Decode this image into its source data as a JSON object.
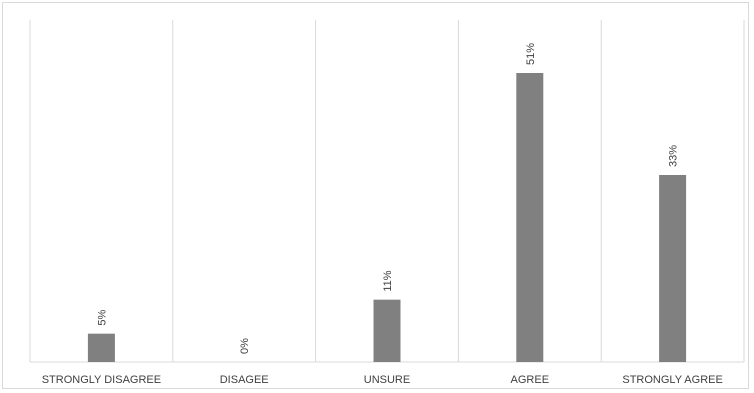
{
  "chart_data": {
    "type": "bar",
    "title": "",
    "xlabel": "",
    "ylabel": "",
    "categories": [
      "STRONGLY DISAGREE",
      "DISAGEE",
      "UNSURE",
      "AGREE",
      "STRONGLY AGREE"
    ],
    "values": [
      5,
      0,
      11,
      51,
      33
    ],
    "data_labels": [
      "5%",
      "0%",
      "11%",
      "51%",
      "33%"
    ],
    "ylim": [
      0,
      60
    ],
    "grid": "vertical category separators",
    "legend": "none",
    "bar_color": "#808080"
  }
}
